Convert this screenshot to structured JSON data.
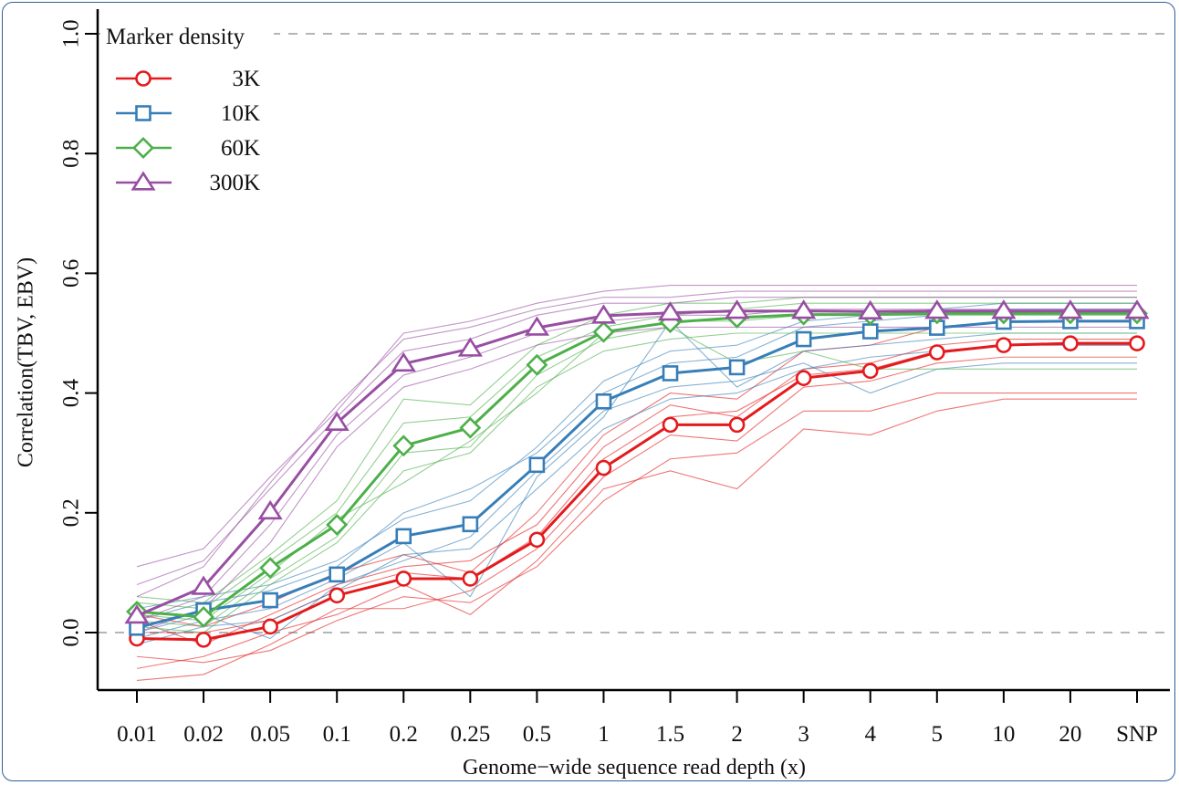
{
  "chart_data": {
    "type": "line",
    "title": "",
    "xlabel": "Genome−wide sequence read depth (x)",
    "ylabel": "Correlation(TBV, EBV)",
    "categories": [
      "0.01",
      "0.02",
      "0.05",
      "0.1",
      "0.2",
      "0.25",
      "0.5",
      "1",
      "1.5",
      "2",
      "3",
      "4",
      "5",
      "10",
      "20",
      "SNP"
    ],
    "ylim": [
      -0.09,
      1.04
    ],
    "yticks": [
      0.0,
      0.2,
      0.4,
      0.6,
      0.8,
      1.0
    ],
    "ytick_labels": [
      "0.0",
      "0.2",
      "0.4",
      "0.6",
      "0.8",
      "1.0"
    ],
    "reference_lines": [
      0.0,
      1.0
    ],
    "grid": false,
    "legend": {
      "title": "Marker density",
      "position": "top-left"
    },
    "series": [
      {
        "name": "3K",
        "color": "#e41a1c",
        "marker": "circle",
        "values": [
          -0.01,
          -0.012,
          0.01,
          0.062,
          0.09,
          0.09,
          0.155,
          0.275,
          0.347,
          0.347,
          0.425,
          0.437,
          0.468,
          0.48,
          0.483,
          0.483
        ]
      },
      {
        "name": "10K",
        "color": "#377eb8",
        "marker": "square",
        "values": [
          0.008,
          0.037,
          0.054,
          0.097,
          0.161,
          0.181,
          0.28,
          0.386,
          0.433,
          0.443,
          0.49,
          0.503,
          0.509,
          0.519,
          0.52,
          0.52
        ]
      },
      {
        "name": "60K",
        "color": "#4daf4a",
        "marker": "diamond",
        "values": [
          0.035,
          0.026,
          0.108,
          0.18,
          0.312,
          0.342,
          0.447,
          0.502,
          0.518,
          0.526,
          0.531,
          0.531,
          0.533,
          0.533,
          0.533,
          0.533
        ]
      },
      {
        "name": "300K",
        "color": "#984ea3",
        "marker": "triangle",
        "values": [
          0.028,
          0.076,
          0.202,
          0.35,
          0.449,
          0.474,
          0.509,
          0.529,
          0.534,
          0.537,
          0.537,
          0.536,
          0.537,
          0.537,
          0.537,
          0.537
        ]
      }
    ],
    "replicates": [
      {
        "series": "3K",
        "values": [
          -0.04,
          -0.05,
          -0.03,
          0.02,
          0.06,
          0.05,
          0.11,
          0.22,
          0.29,
          0.3,
          0.37,
          0.37,
          0.4,
          0.4,
          0.4,
          0.4
        ]
      },
      {
        "series": "3K",
        "values": [
          0.02,
          -0.02,
          0.03,
          0.08,
          0.11,
          0.12,
          0.18,
          0.31,
          0.38,
          0.36,
          0.44,
          0.45,
          0.48,
          0.49,
          0.49,
          0.49
        ]
      },
      {
        "series": "3K",
        "values": [
          -0.08,
          -0.07,
          -0.02,
          0.04,
          0.04,
          0.07,
          0.14,
          0.26,
          0.33,
          0.32,
          0.41,
          0.42,
          0.45,
          0.46,
          0.46,
          0.46
        ]
      },
      {
        "series": "3K",
        "values": [
          0.03,
          0.01,
          0.05,
          0.1,
          0.13,
          0.1,
          0.2,
          0.33,
          0.4,
          0.39,
          0.47,
          0.48,
          0.51,
          0.52,
          0.52,
          0.52
        ]
      },
      {
        "series": "3K",
        "values": [
          -0.06,
          -0.04,
          0.0,
          0.03,
          0.08,
          0.03,
          0.12,
          0.24,
          0.27,
          0.24,
          0.34,
          0.33,
          0.37,
          0.39,
          0.39,
          0.39
        ]
      },
      {
        "series": "3K",
        "values": [
          0.0,
          0.0,
          0.02,
          0.07,
          0.1,
          0.09,
          0.16,
          0.29,
          0.36,
          0.37,
          0.43,
          0.44,
          0.47,
          0.48,
          0.48,
          0.48
        ]
      },
      {
        "series": "10K",
        "values": [
          -0.02,
          0.01,
          0.02,
          0.07,
          0.13,
          0.14,
          0.24,
          0.34,
          0.39,
          0.4,
          0.44,
          0.46,
          0.47,
          0.48,
          0.48,
          0.48
        ]
      },
      {
        "series": "10K",
        "values": [
          0.04,
          0.06,
          0.08,
          0.12,
          0.19,
          0.22,
          0.31,
          0.42,
          0.47,
          0.48,
          0.52,
          0.53,
          0.54,
          0.55,
          0.55,
          0.55
        ]
      },
      {
        "series": "10K",
        "values": [
          -0.01,
          0.02,
          0.04,
          0.09,
          0.15,
          0.06,
          0.26,
          0.36,
          0.52,
          0.41,
          0.47,
          0.48,
          0.49,
          0.5,
          0.5,
          0.5
        ]
      },
      {
        "series": "10K",
        "values": [
          0.02,
          0.05,
          0.07,
          0.11,
          0.2,
          0.24,
          0.3,
          0.4,
          0.45,
          0.46,
          0.51,
          0.52,
          0.53,
          0.54,
          0.54,
          0.54
        ]
      },
      {
        "series": "10K",
        "values": [
          0.0,
          0.03,
          -0.01,
          0.08,
          0.12,
          0.16,
          0.27,
          0.37,
          0.41,
          0.42,
          0.45,
          0.4,
          0.44,
          0.45,
          0.45,
          0.45
        ]
      },
      {
        "series": "60K",
        "values": [
          0.01,
          0.0,
          0.08,
          0.15,
          0.27,
          0.3,
          0.41,
          0.47,
          0.49,
          0.5,
          0.5,
          0.5,
          0.5,
          0.5,
          0.5,
          0.5
        ]
      },
      {
        "series": "60K",
        "values": [
          0.06,
          0.05,
          0.13,
          0.22,
          0.39,
          0.38,
          0.48,
          0.53,
          0.55,
          0.55,
          0.56,
          0.56,
          0.56,
          0.56,
          0.56,
          0.56
        ]
      },
      {
        "series": "60K",
        "values": [
          0.02,
          0.01,
          0.09,
          0.16,
          0.3,
          0.31,
          0.43,
          0.49,
          0.51,
          0.45,
          0.47,
          0.44,
          0.44,
          0.44,
          0.44,
          0.44
        ]
      },
      {
        "series": "60K",
        "values": [
          0.05,
          0.04,
          0.12,
          0.2,
          0.35,
          0.36,
          0.46,
          0.51,
          0.53,
          0.54,
          0.55,
          0.55,
          0.55,
          0.55,
          0.55,
          0.55
        ]
      },
      {
        "series": "60K",
        "values": [
          0.03,
          0.02,
          0.1,
          0.19,
          0.25,
          0.32,
          0.4,
          0.5,
          0.52,
          0.52,
          0.53,
          0.53,
          0.53,
          0.53,
          0.53,
          0.53
        ]
      },
      {
        "series": "300K",
        "values": [
          0.0,
          0.04,
          0.15,
          0.31,
          0.41,
          0.44,
          0.48,
          0.5,
          0.51,
          0.51,
          0.51,
          0.51,
          0.51,
          0.51,
          0.51,
          0.51
        ]
      },
      {
        "series": "300K",
        "values": [
          0.06,
          0.11,
          0.25,
          0.38,
          0.49,
          0.51,
          0.54,
          0.56,
          0.56,
          0.57,
          0.57,
          0.57,
          0.57,
          0.57,
          0.57,
          0.57
        ]
      },
      {
        "series": "300K",
        "values": [
          0.11,
          0.14,
          0.26,
          0.37,
          0.5,
          0.52,
          0.55,
          0.57,
          0.58,
          0.58,
          0.58,
          0.58,
          0.58,
          0.58,
          0.58,
          0.58
        ]
      },
      {
        "series": "300K",
        "values": [
          0.02,
          0.06,
          0.18,
          0.33,
          0.43,
          0.46,
          0.5,
          0.52,
          0.53,
          0.53,
          0.54,
          0.54,
          0.54,
          0.54,
          0.54,
          0.54
        ]
      },
      {
        "series": "300K",
        "values": [
          0.08,
          0.12,
          0.24,
          0.36,
          0.47,
          0.49,
          0.53,
          0.55,
          0.55,
          0.56,
          0.56,
          0.56,
          0.56,
          0.56,
          0.56,
          0.56
        ]
      }
    ]
  }
}
